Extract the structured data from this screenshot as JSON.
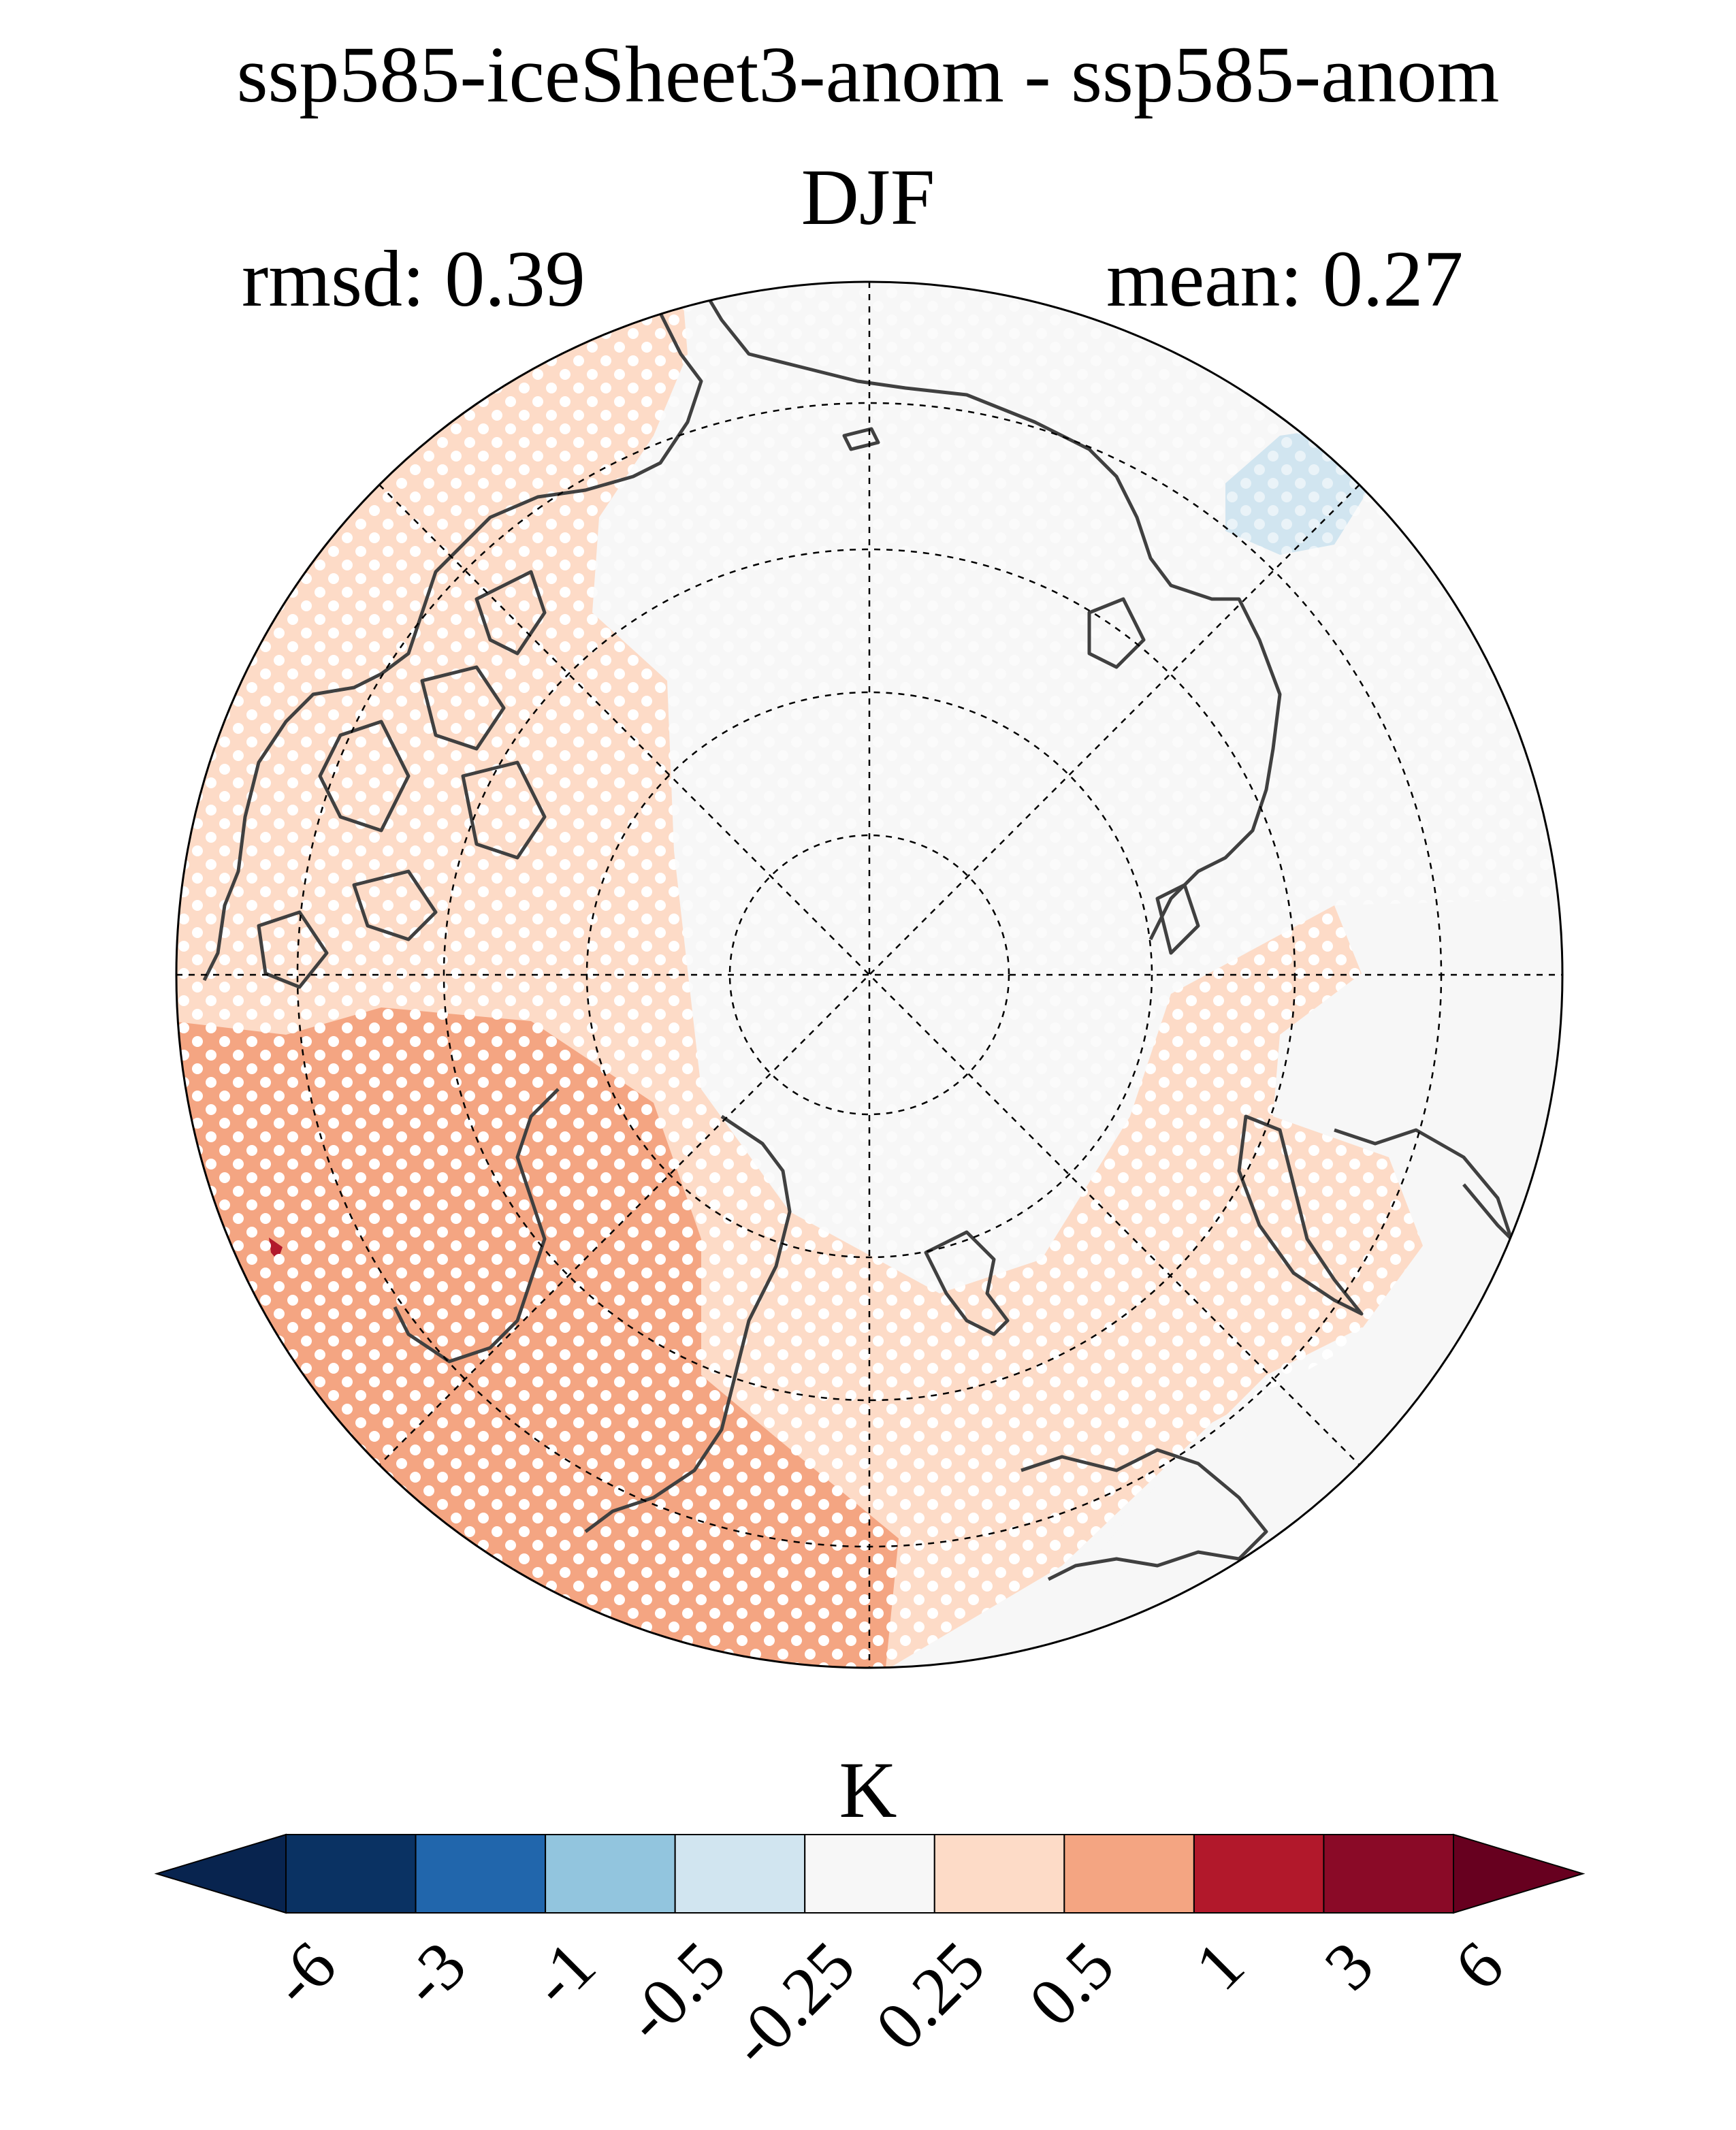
{
  "figure": {
    "title": "ssp585-iceSheet3-anom - ssp585-anom",
    "season": "DJF",
    "rmsd_label": "rmsd: 0.39",
    "mean_label": "mean: 0.27"
  },
  "map": {
    "projection": "north-polar-stereographic",
    "boundary": "circle",
    "graticule": "dashed",
    "stippling": "white-dots",
    "coastline_color": "#404040"
  },
  "colorbar": {
    "unit": "K",
    "extend": "both",
    "tick_labels": [
      "-6",
      "-3",
      "-1",
      "-0.5",
      "-0.25",
      "0.25",
      "0.5",
      "1",
      "3",
      "6"
    ],
    "colors": [
      "#08244f",
      "#0a3263",
      "#2166ac",
      "#92c5de",
      "#d1e5f0",
      "#f7f7f7",
      "#fddbc7",
      "#f4a582",
      "#b2182b",
      "#8a0a27",
      "#67001f"
    ]
  },
  "chart_data": {
    "type": "heatmap",
    "levels": [
      -6,
      -3,
      -1,
      -0.5,
      -0.25,
      0.25,
      0.5,
      1,
      3,
      6
    ],
    "unit": "K",
    "stats": {
      "rmsd": 0.39,
      "mean": 0.27
    }
  }
}
